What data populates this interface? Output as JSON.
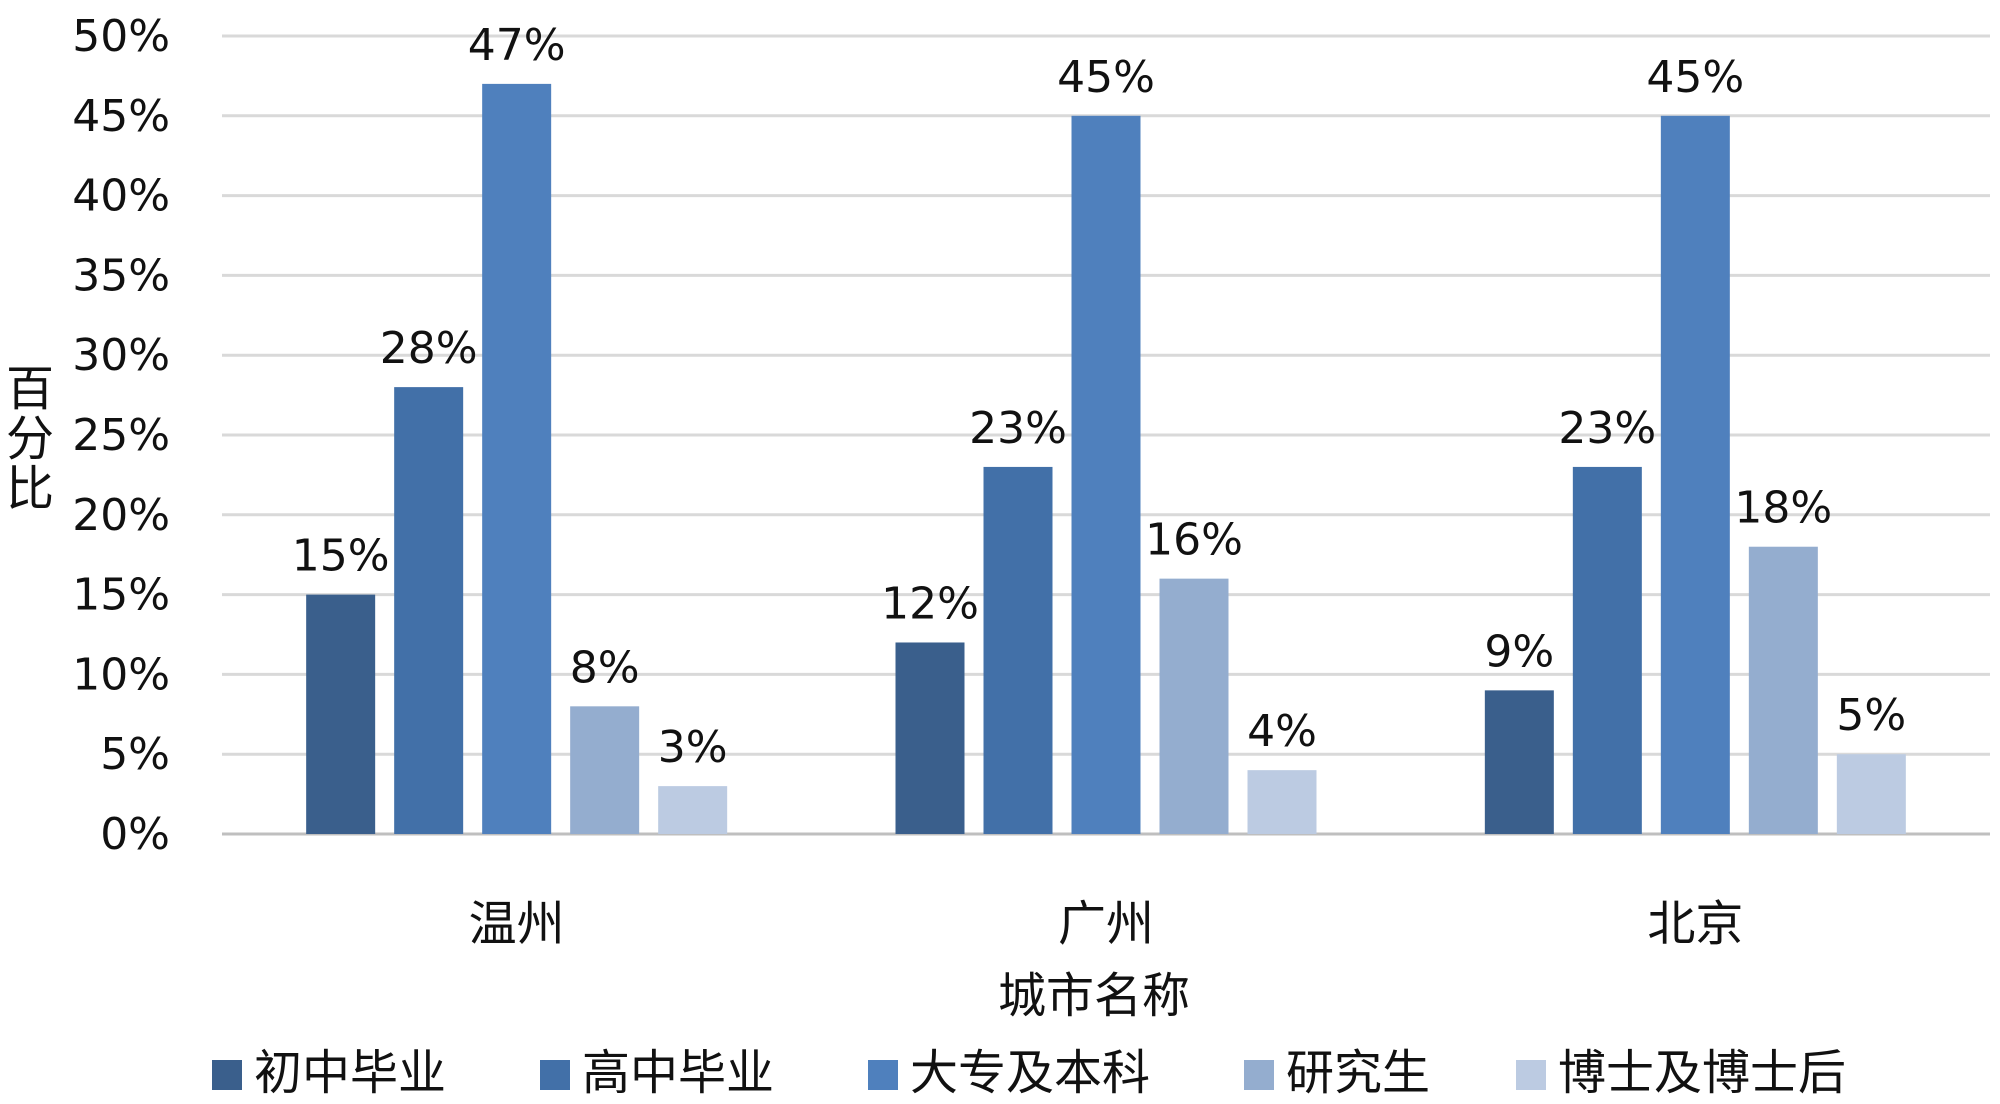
{
  "chart_data": {
    "type": "bar",
    "title": "",
    "xlabel": "城市名称",
    "ylabel": "百分比",
    "ylim": [
      0,
      50
    ],
    "y_ticks": [
      0,
      5,
      10,
      15,
      20,
      25,
      30,
      35,
      40,
      45,
      50
    ],
    "y_tick_labels": [
      "0%",
      "5%",
      "10%",
      "15%",
      "20%",
      "25%",
      "30%",
      "35%",
      "40%",
      "45%",
      "50%"
    ],
    "grid": true,
    "legend_position": "bottom",
    "categories": [
      "温州",
      "广州",
      "北京"
    ],
    "series": [
      {
        "name": "初中毕业",
        "color": "#3a5f8c",
        "values": [
          15,
          12,
          9
        ],
        "labels": [
          "15%",
          "12%",
          "9%"
        ]
      },
      {
        "name": "高中毕业",
        "color": "#4270a8",
        "values": [
          28,
          23,
          23
        ],
        "labels": [
          "28%",
          "23%",
          "23%"
        ]
      },
      {
        "name": "大专及本科",
        "color": "#4f80bd",
        "values": [
          47,
          45,
          45
        ],
        "labels": [
          "47%",
          "45%",
          "45%"
        ]
      },
      {
        "name": "研究生",
        "color": "#94adcf",
        "values": [
          8,
          16,
          18
        ],
        "labels": [
          "8%",
          "16%",
          "18%"
        ]
      },
      {
        "name": "博士及博士后",
        "color": "#bccbe2",
        "values": [
          3,
          4,
          5
        ],
        "labels": [
          "3%",
          "4%",
          "5%"
        ]
      }
    ]
  }
}
